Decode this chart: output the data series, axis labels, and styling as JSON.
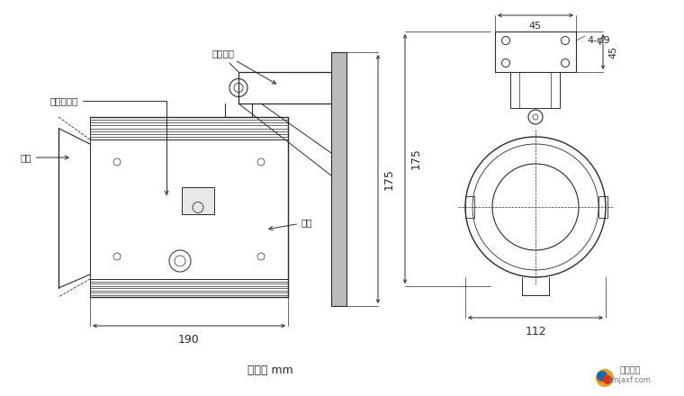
{
  "bg_color": "#ffffff",
  "line_color": "#2a2a2a",
  "dim_color": "#2a2a2a",
  "unit_text": "单位： mm",
  "label_cejizhuiti": "探测器主体",
  "label_shangai": "上盖",
  "label_xiaai": "下盖",
  "label_anzhang": "安装支架",
  "dim_190": "190",
  "dim_175": "175",
  "dim_112": "112",
  "dim_45h": "45",
  "dim_45v": "45",
  "dim_4phi9": "4-φ9",
  "watermark_line1": "智森消防",
  "watermark_line2": "zmjaxf.com"
}
